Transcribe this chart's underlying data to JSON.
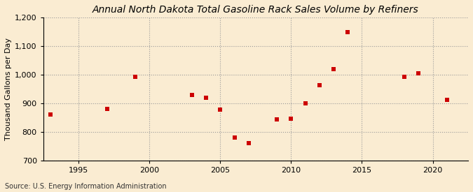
{
  "title": "Annual North Dakota Total Gasoline Rack Sales Volume by Refiners",
  "ylabel": "Thousand Gallons per Day",
  "source": "Source: U.S. Energy Information Administration",
  "years": [
    1993,
    1997,
    1999,
    2003,
    2004,
    2005,
    2006,
    2007,
    2009,
    2010,
    2011,
    2012,
    2013,
    2014,
    2018,
    2019,
    2021
  ],
  "values": [
    860,
    880,
    993,
    928,
    920,
    878,
    780,
    760,
    843,
    845,
    900,
    962,
    1018,
    1148,
    992,
    1005,
    912
  ],
  "marker_color": "#cc0000",
  "marker": "s",
  "markersize": 4,
  "ylim": [
    700,
    1200
  ],
  "yticks": [
    700,
    800,
    900,
    1000,
    1100,
    1200
  ],
  "xlim": [
    1992.5,
    2022.5
  ],
  "xticks": [
    1995,
    2000,
    2005,
    2010,
    2015,
    2020
  ],
  "background_color": "#faecd2",
  "grid_color": "#999999",
  "title_fontsize": 10,
  "label_fontsize": 8,
  "tick_fontsize": 8,
  "source_fontsize": 7
}
